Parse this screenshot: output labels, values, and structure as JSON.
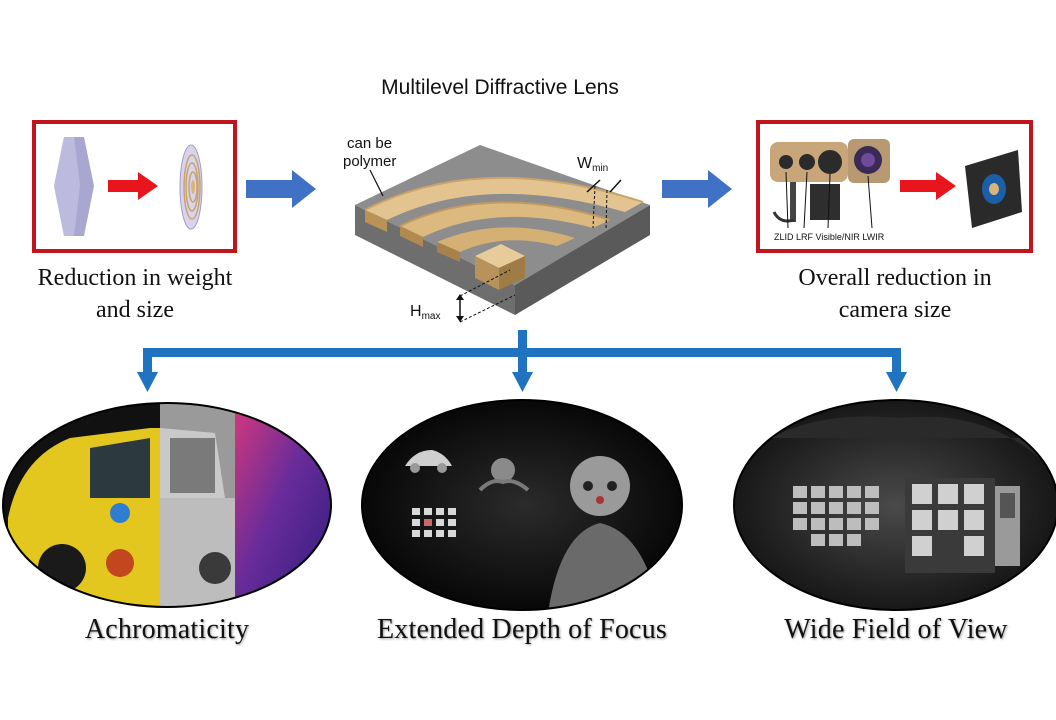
{
  "diagram": {
    "top_title": "Multilevel Diffractive Lens",
    "lens_labels": {
      "material": "can be\npolymer",
      "w_min_main": "W",
      "w_min_sub": "min",
      "h_max_main": "H",
      "h_max_sub": "max"
    },
    "left_caption_line1": "Reduction in weight",
    "left_caption_line2": "and size",
    "right_caption_line1": "Overall reduction in",
    "right_caption_line2": "camera size",
    "camera_label": "ZLID LRF Visible/NIR LWIR",
    "bottom_captions": [
      "Achromaticity",
      "Extended Depth of Focus",
      "Wide Field of View"
    ],
    "colors": {
      "frame_red": "#c0151c",
      "arrow_red": "#e8161c",
      "arrow_blue": "#3f72c4",
      "tree_blue": "#1f73c0",
      "lens_tan": "#d9b57a"
    }
  }
}
